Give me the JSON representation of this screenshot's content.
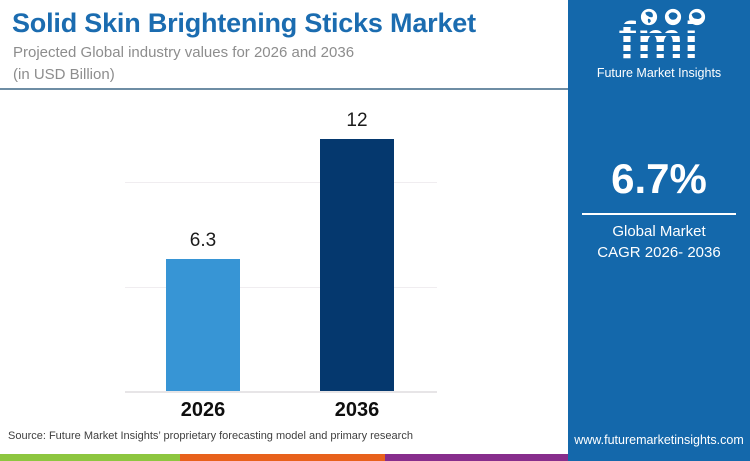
{
  "header": {
    "title": "Solid Skin Brightening Sticks Market",
    "subtitle_line1": "Projected Global industry values for 2026 and 2036",
    "subtitle_line2": "(in USD Billion)"
  },
  "chart_data": {
    "type": "bar",
    "title": "Solid Skin Brightening Sticks Market",
    "subtitle": "Projected Global industry values for 2026 and 2036 (in USD Billion)",
    "categories": [
      "2026",
      "2036"
    ],
    "values": [
      6.3,
      12
    ],
    "value_labels": [
      "6.3",
      "12"
    ],
    "bar_colors": [
      "#3795d5",
      "#05386e"
    ],
    "xlabel": "",
    "ylabel": "",
    "ylim": [
      0,
      12
    ],
    "gridlines": [
      5,
      10
    ],
    "grid": true,
    "legend": "none"
  },
  "source": "Source: Future Market Insights’ proprietary forecasting model and primary research",
  "sidebar": {
    "background": "#1468ab",
    "logo_text": "fmi",
    "logo_caption": "Future Market Insights",
    "cagr_value": "6.7%",
    "cagr_label_line1": "Global Market",
    "cagr_label_line2": "CAGR 2026- 2036",
    "website": "www.futuremarketinsights.com"
  },
  "footer_strip": {
    "colors": [
      "#8dc63f",
      "#e8611c",
      "#872d8c"
    ]
  }
}
